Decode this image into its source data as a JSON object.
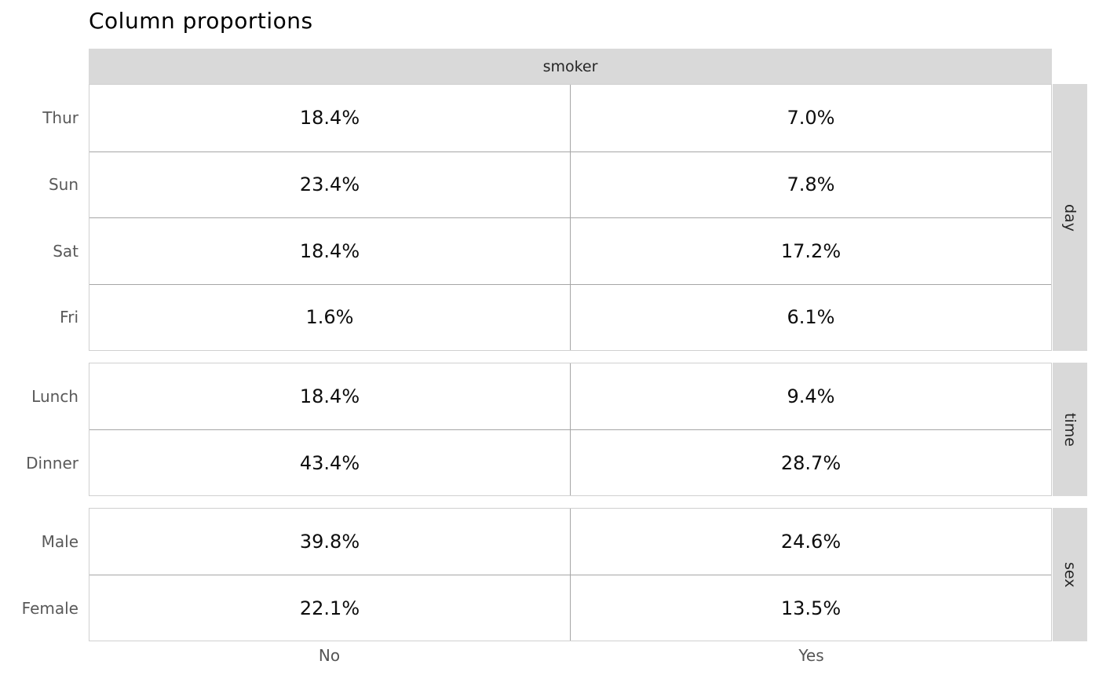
{
  "title": "Column proportions",
  "header": {
    "column_variable": "smoker"
  },
  "axis": {
    "col_no": "No",
    "col_yes": "Yes"
  },
  "facets": [
    {
      "name": "day",
      "rows": [
        {
          "label": "Thur",
          "no": "18.4%",
          "yes": "7.0%"
        },
        {
          "label": "Sun",
          "no": "23.4%",
          "yes": "7.8%"
        },
        {
          "label": "Sat",
          "no": "18.4%",
          "yes": "17.2%"
        },
        {
          "label": "Fri",
          "no": "1.6%",
          "yes": "6.1%"
        }
      ]
    },
    {
      "name": "time",
      "rows": [
        {
          "label": "Lunch",
          "no": "18.4%",
          "yes": "9.4%"
        },
        {
          "label": "Dinner",
          "no": "43.4%",
          "yes": "28.7%"
        }
      ]
    },
    {
      "name": "sex",
      "rows": [
        {
          "label": "Male",
          "no": "39.8%",
          "yes": "24.6%"
        },
        {
          "label": "Female",
          "no": "22.1%",
          "yes": "13.5%"
        }
      ]
    }
  ],
  "colors": {
    "strip_background": "#d9d9d9",
    "strip_text": "#262626",
    "outer_border": "#d0d0d0",
    "inner_border": "#a6a6a6",
    "row_label_text": "#595959",
    "axis_label_text": "#555555",
    "value_text": "#0d0d0d",
    "title_text": "#000000",
    "page_background": "#ffffff"
  },
  "chart_data": {
    "type": "table",
    "title": "Column proportions",
    "column_variable": "smoker",
    "columns": [
      "No",
      "Yes"
    ],
    "value_format": "percent",
    "row_groups": [
      {
        "variable": "day",
        "categories": [
          "Thur",
          "Sun",
          "Sat",
          "Fri"
        ],
        "series": [
          {
            "name": "No",
            "values": [
              18.4,
              23.4,
              18.4,
              1.6
            ]
          },
          {
            "name": "Yes",
            "values": [
              7.0,
              7.8,
              17.2,
              6.1
            ]
          }
        ]
      },
      {
        "variable": "time",
        "categories": [
          "Lunch",
          "Dinner"
        ],
        "series": [
          {
            "name": "No",
            "values": [
              18.4,
              43.4
            ]
          },
          {
            "name": "Yes",
            "values": [
              9.4,
              28.7
            ]
          }
        ]
      },
      {
        "variable": "sex",
        "categories": [
          "Male",
          "Female"
        ],
        "series": [
          {
            "name": "No",
            "values": [
              39.8,
              22.1
            ]
          },
          {
            "name": "Yes",
            "values": [
              24.6,
              13.5
            ]
          }
        ]
      }
    ],
    "layout": {
      "strip_position_columns": "top",
      "strip_position_rows": "right",
      "grid": "cell-borders",
      "legend": "none"
    }
  }
}
